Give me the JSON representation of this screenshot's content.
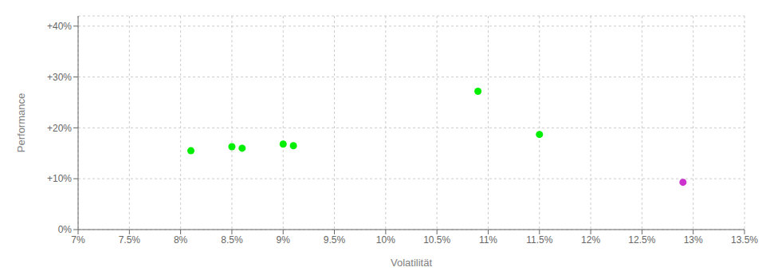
{
  "chart_data": {
    "type": "scatter",
    "xlabel": "Volatilität",
    "ylabel": "Performance",
    "xlim": [
      0.07,
      0.135
    ],
    "ylim": [
      0.0,
      0.42
    ],
    "xticks": [
      {
        "value": 0.07,
        "label": "7%"
      },
      {
        "value": 0.075,
        "label": "7.5%"
      },
      {
        "value": 0.08,
        "label": "8%"
      },
      {
        "value": 0.085,
        "label": "8.5%"
      },
      {
        "value": 0.09,
        "label": "9%"
      },
      {
        "value": 0.095,
        "label": "9.5%"
      },
      {
        "value": 0.1,
        "label": "10%"
      },
      {
        "value": 0.105,
        "label": "10.5%"
      },
      {
        "value": 0.11,
        "label": "11%"
      },
      {
        "value": 0.115,
        "label": "11.5%"
      },
      {
        "value": 0.12,
        "label": "12%"
      },
      {
        "value": 0.125,
        "label": "12.5%"
      },
      {
        "value": 0.13,
        "label": "13%"
      },
      {
        "value": 0.135,
        "label": "13.5%"
      }
    ],
    "yticks": [
      {
        "value": 0.0,
        "label": "0%"
      },
      {
        "value": 0.1,
        "label": "+10%"
      },
      {
        "value": 0.2,
        "label": "+20%"
      },
      {
        "value": 0.3,
        "label": "+30%"
      },
      {
        "value": 0.4,
        "label": "+40%"
      }
    ],
    "grid": true,
    "series": [
      {
        "color": "#00ee00",
        "x": [
          0.081,
          0.085,
          0.086,
          0.09,
          0.091,
          0.109,
          0.115
        ],
        "values": [
          0.155,
          0.163,
          0.16,
          0.168,
          0.165,
          0.272,
          0.187
        ]
      },
      {
        "color": "#cc33cc",
        "x": [
          0.129
        ],
        "values": [
          0.093
        ]
      }
    ]
  }
}
